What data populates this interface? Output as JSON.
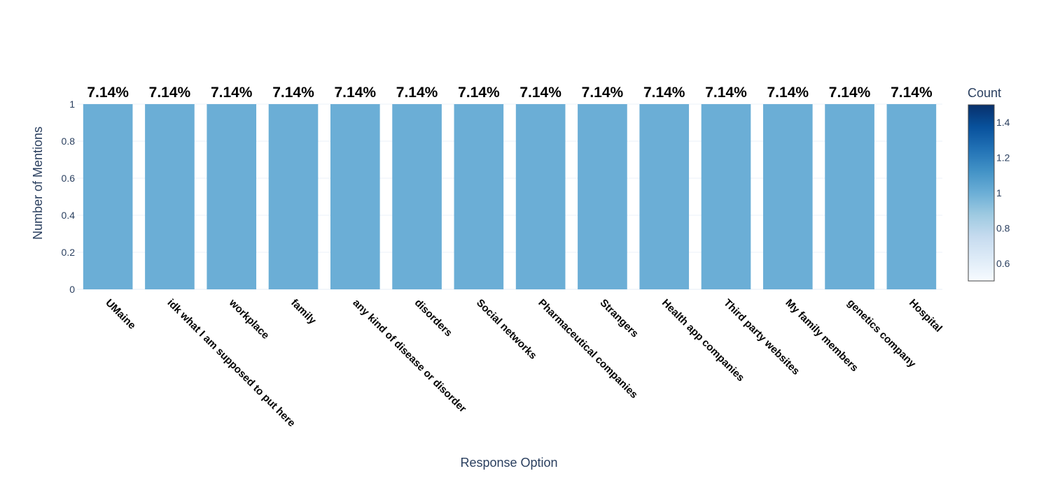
{
  "chart_data": {
    "type": "bar",
    "categories": [
      "UMaine",
      "idk what I am supposed to put here",
      "workplace",
      "family",
      "any kind of disease or disorder",
      "disorders",
      "Social networks",
      "Pharmaceutical companies",
      "Strangers",
      "Health app companies",
      "Third party websites",
      "My family members",
      "genetics company",
      "Hospital"
    ],
    "values": [
      1,
      1,
      1,
      1,
      1,
      1,
      1,
      1,
      1,
      1,
      1,
      1,
      1,
      1
    ],
    "data_labels": [
      "7.14%",
      "7.14%",
      "7.14%",
      "7.14%",
      "7.14%",
      "7.14%",
      "7.14%",
      "7.14%",
      "7.14%",
      "7.14%",
      "7.14%",
      "7.14%",
      "7.14%",
      "7.14%"
    ],
    "xlabel": "Response Option",
    "ylabel": "Number of Mentions",
    "ylim": [
      0,
      1
    ],
    "yticks": [
      "0",
      "0.2",
      "0.4",
      "0.6",
      "0.8",
      "1"
    ],
    "ytick_values": [
      0,
      0.2,
      0.4,
      0.6,
      0.8,
      1
    ],
    "grid": true,
    "bar_color": "#6baed6",
    "colorbar": {
      "title": "Count",
      "range": [
        0.5,
        1.5
      ],
      "ticks": [
        "0.6",
        "0.8",
        "1",
        "1.2",
        "1.4"
      ],
      "tick_values": [
        0.6,
        0.8,
        1,
        1.2,
        1.4
      ],
      "colorscale": [
        "#f7fbff",
        "#deebf7",
        "#c6dbef",
        "#9ecae1",
        "#6baed6",
        "#4292c6",
        "#2171b5",
        "#08519c",
        "#08306b"
      ]
    }
  }
}
